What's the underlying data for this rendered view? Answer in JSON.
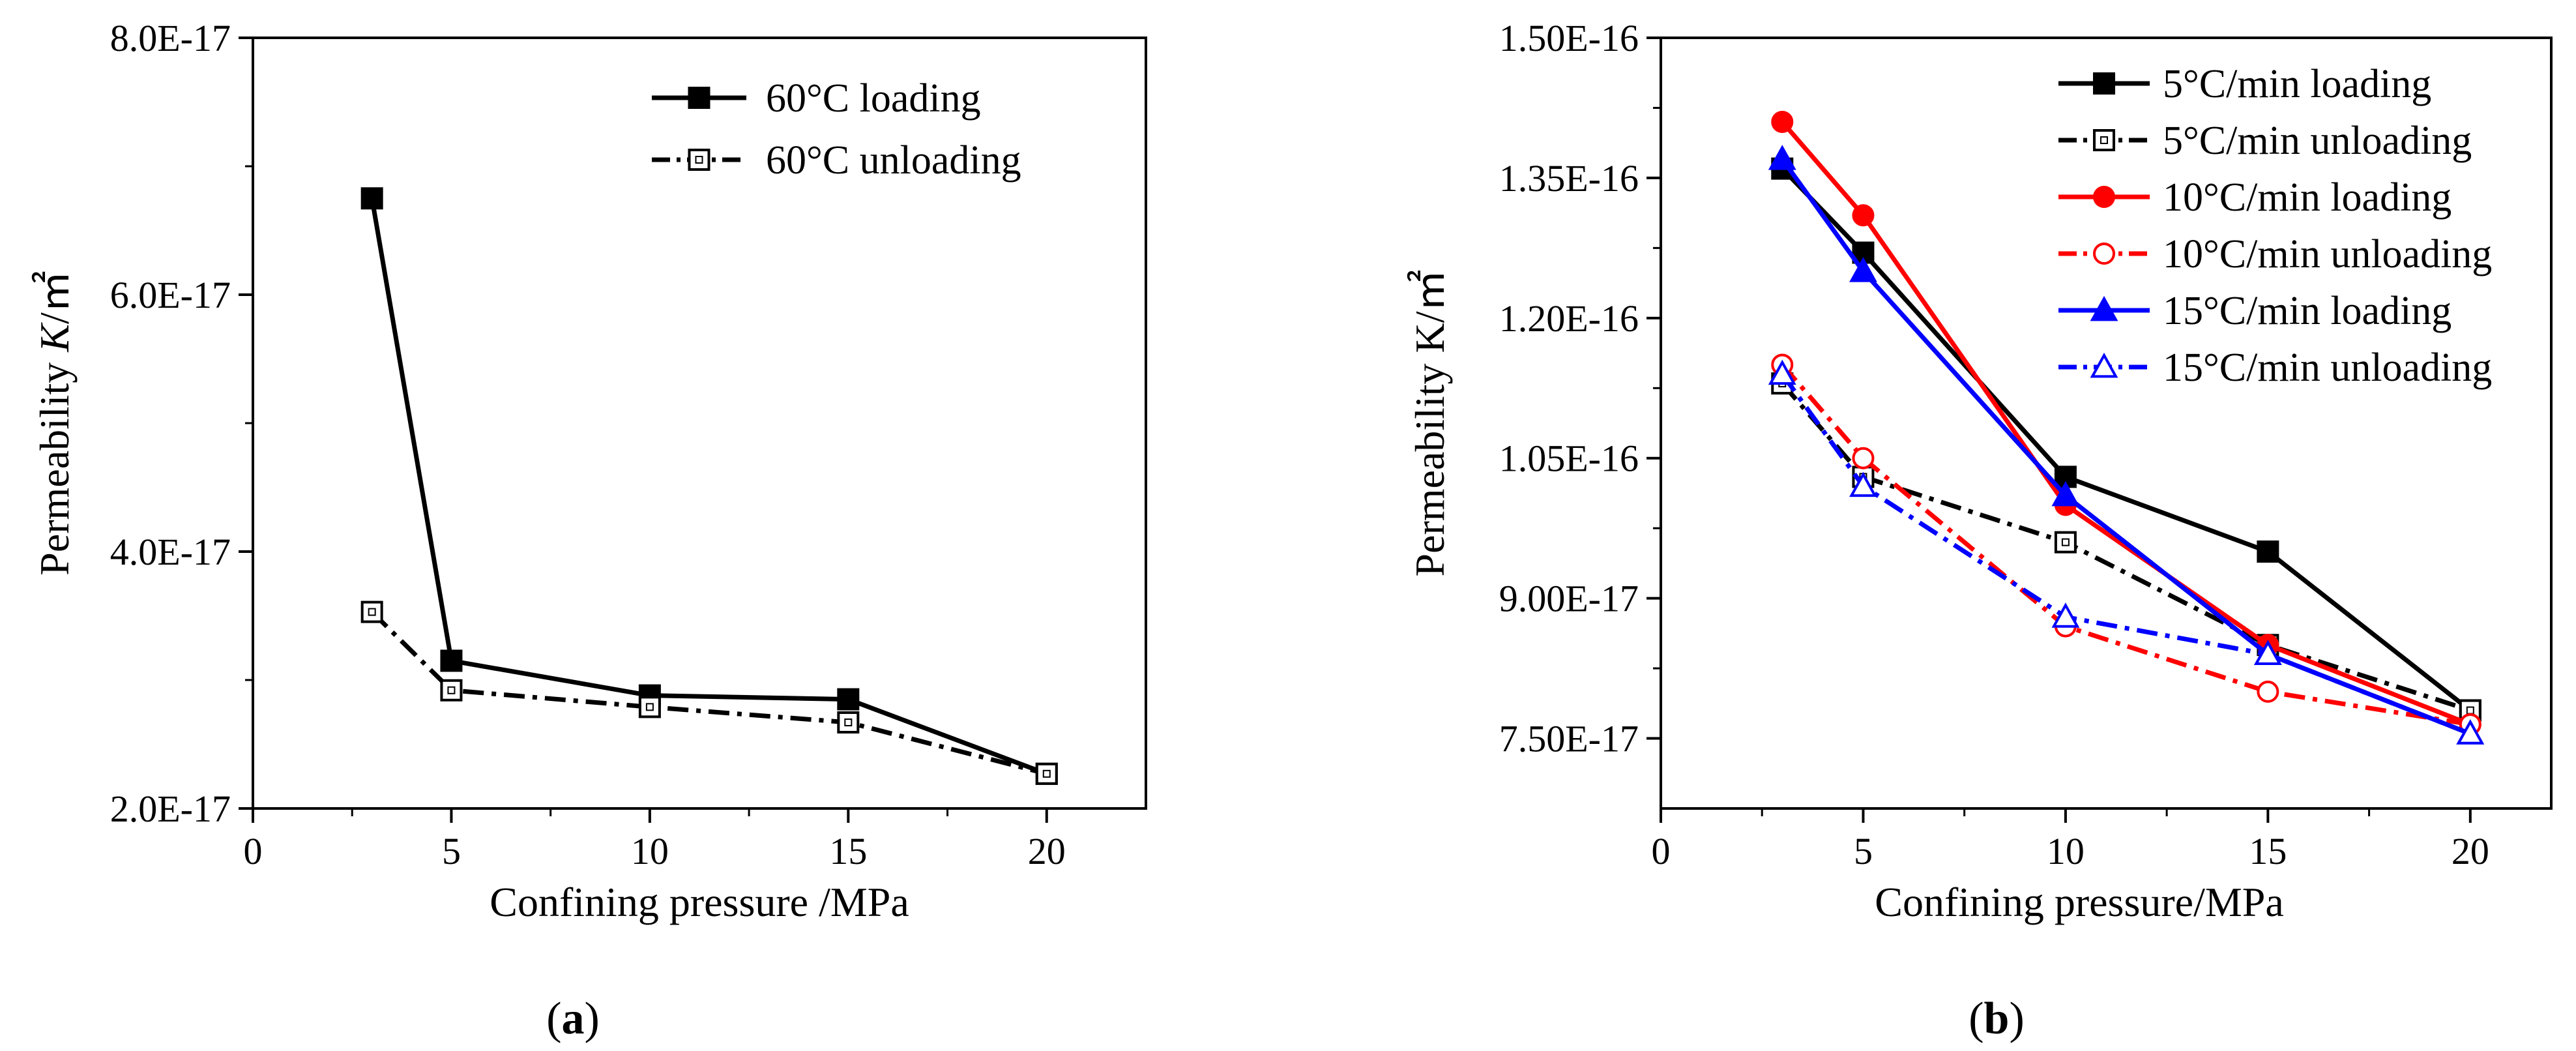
{
  "chart_data": [
    {
      "type": "line",
      "caption_letter": "a",
      "xlabel": "Confining pressure /MPa",
      "ylabel_prefix": "Permeability ",
      "ylabel_var": "K",
      "ylabel_unit": "/㎡",
      "xlim": [
        0,
        22.5
      ],
      "ylim": [
        2e-17,
        8e-17
      ],
      "xticks": [
        0,
        5,
        10,
        15,
        20
      ],
      "xtick_labels": [
        "0",
        "5",
        "10",
        "15",
        "20"
      ],
      "yticks": [
        2e-17,
        4e-17,
        6e-17,
        8e-17
      ],
      "ytick_labels": [
        "2.0E-17",
        "4.0E-17",
        "6.0E-17",
        "8.0E-17"
      ],
      "legend_position": "top-right",
      "series": [
        {
          "name": "60°C loading",
          "color": "#000000",
          "dash": "solid",
          "marker": "square-filled",
          "x": [
            3,
            5,
            10,
            15,
            20
          ],
          "values": [
            6.75e-17,
            3.15e-17,
            2.88e-17,
            2.85e-17,
            2.27e-17
          ]
        },
        {
          "name": "60°C unloading",
          "color": "#000000",
          "dash": "dashdot",
          "marker": "square-open",
          "x": [
            3,
            5,
            10,
            15,
            20
          ],
          "values": [
            3.53e-17,
            2.92e-17,
            2.79e-17,
            2.67e-17,
            2.27e-17
          ]
        }
      ]
    },
    {
      "type": "line",
      "caption_letter": "b",
      "xlabel": "Confining pressure/MPa",
      "ylabel": "Permeability K/㎡",
      "xlim": [
        0,
        22
      ],
      "ylim": [
        6.75e-17,
        1.5e-16
      ],
      "xticks": [
        0,
        5,
        10,
        15,
        20
      ],
      "xtick_labels": [
        "0",
        "5",
        "10",
        "15",
        "20"
      ],
      "yticks": [
        7.5e-17,
        9e-17,
        1.05e-16,
        1.2e-16,
        1.35e-16,
        1.5e-16
      ],
      "ytick_labels": [
        "7.50E-17",
        "9.00E-17",
        "1.05E-16",
        "1.20E-16",
        "1.35E-16",
        "1.50E-16"
      ],
      "legend_position": "top-right",
      "series": [
        {
          "name": " 5°C/min loading",
          "color": "#000000",
          "dash": "solid",
          "marker": "square-filled",
          "x": [
            3,
            5,
            10,
            15,
            20
          ],
          "values": [
            1.36e-16,
            1.27e-16,
            1.03e-16,
            9.5e-17,
            7.8e-17
          ]
        },
        {
          "name": " 5°C/min unloading",
          "color": "#000000",
          "dash": "dashdot",
          "marker": "square-open",
          "x": [
            3,
            5,
            10,
            15,
            20
          ],
          "values": [
            1.13e-16,
            1.03e-16,
            9.6e-17,
            8.5e-17,
            7.8e-17
          ]
        },
        {
          "name": "10°C/min loading",
          "color": "#ff0000",
          "dash": "solid",
          "marker": "circle-filled",
          "x": [
            3,
            5,
            10,
            15,
            20
          ],
          "values": [
            1.41e-16,
            1.31e-16,
            1e-16,
            8.5e-17,
            7.65e-17
          ]
        },
        {
          "name": "10°C/min unloading",
          "color": "#ff0000",
          "dash": "dashdot",
          "marker": "circle-open",
          "x": [
            3,
            5,
            10,
            15,
            20
          ],
          "values": [
            1.15e-16,
            1.05e-16,
            8.7e-17,
            8e-17,
            7.65e-17
          ]
        },
        {
          "name": "15°C/min loading",
          "color": "#0000ff",
          "dash": "solid",
          "marker": "triangle-filled",
          "x": [
            3,
            5,
            10,
            15,
            20
          ],
          "values": [
            1.37e-16,
            1.25e-16,
            1.01e-16,
            8.4e-17,
            7.55e-17
          ]
        },
        {
          "name": "15°C/min unloading",
          "color": "#0000ff",
          "dash": "dashdot",
          "marker": "triangle-open",
          "x": [
            3,
            5,
            10,
            15,
            20
          ],
          "values": [
            1.14e-16,
            1.02e-16,
            8.8e-17,
            8.4e-17,
            7.55e-17
          ]
        }
      ]
    }
  ]
}
